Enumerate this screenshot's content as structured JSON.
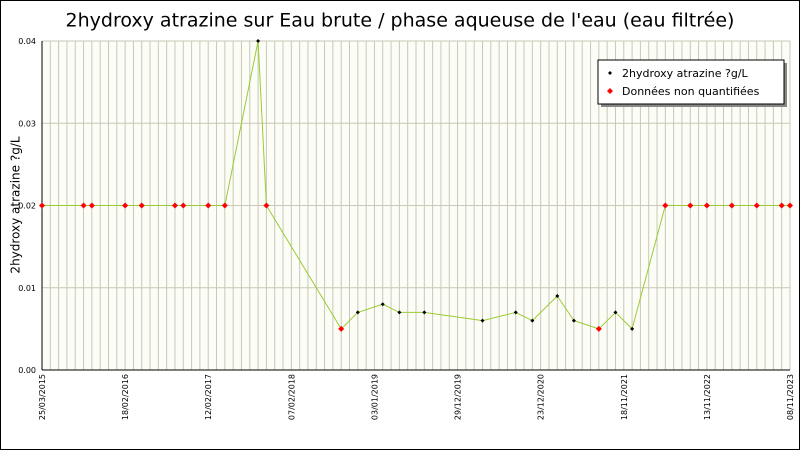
{
  "chart_data": {
    "type": "line",
    "title": "2hydroxy atrazine sur Eau brute / phase aqueuse de l'eau (eau filtrée)",
    "y_label": "2hydroxy atrazine ?g/L",
    "categories": [
      "25/03/2015",
      null,
      null,
      null,
      null,
      null,
      null,
      null,
      null,
      null,
      "18/02/2016",
      null,
      null,
      null,
      null,
      null,
      null,
      null,
      null,
      null,
      "12/02/2017",
      null,
      null,
      null,
      null,
      null,
      null,
      null,
      null,
      null,
      "07/02/2018",
      null,
      null,
      null,
      null,
      null,
      null,
      null,
      null,
      null,
      "03/01/2019",
      null,
      null,
      null,
      null,
      null,
      null,
      null,
      null,
      null,
      "29/12/2019",
      null,
      null,
      null,
      null,
      null,
      null,
      null,
      null,
      null,
      "23/12/2020",
      null,
      null,
      null,
      null,
      null,
      null,
      null,
      null,
      null,
      "18/11/2021",
      null,
      null,
      null,
      null,
      null,
      null,
      null,
      null,
      null,
      "13/11/2022",
      null,
      null,
      null,
      null,
      null,
      null,
      null,
      null,
      null,
      "08/11/2023"
    ],
    "series": [
      {
        "name": "2hydroxy atrazine ?g/L",
        "color": "#000000",
        "values": [
          null,
          null,
          null,
          null,
          null,
          null,
          null,
          null,
          null,
          null,
          null,
          null,
          null,
          null,
          null,
          null,
          null,
          null,
          null,
          null,
          null,
          null,
          null,
          null,
          null,
          null,
          0.04,
          null,
          null,
          null,
          null,
          null,
          null,
          null,
          null,
          null,
          null,
          null,
          0.007,
          null,
          null,
          0.008,
          null,
          0.007,
          null,
          null,
          0.007,
          null,
          null,
          null,
          null,
          null,
          null,
          0.006,
          null,
          null,
          null,
          0.007,
          null,
          0.006,
          null,
          null,
          0.009,
          null,
          0.006,
          null,
          null,
          null,
          null,
          0.007,
          null,
          0.005,
          null,
          null,
          null,
          null,
          null,
          null,
          null,
          null,
          null,
          null,
          null,
          null,
          null,
          null,
          null,
          null,
          null,
          null,
          null
        ]
      },
      {
        "name": "Données non quantifiées",
        "color": "#ff0000",
        "values": [
          0.02,
          null,
          null,
          null,
          null,
          0.02,
          0.02,
          null,
          null,
          null,
          0.02,
          null,
          0.02,
          null,
          null,
          null,
          0.02,
          0.02,
          null,
          null,
          0.02,
          null,
          0.02,
          null,
          null,
          null,
          null,
          0.02,
          null,
          null,
          null,
          null,
          null,
          null,
          null,
          null,
          0.005,
          null,
          null,
          null,
          null,
          null,
          null,
          null,
          null,
          null,
          null,
          null,
          null,
          null,
          null,
          null,
          null,
          null,
          null,
          null,
          null,
          null,
          null,
          null,
          null,
          null,
          null,
          null,
          null,
          null,
          null,
          0.005,
          null,
          null,
          null,
          null,
          null,
          null,
          null,
          0.02,
          null,
          null,
          0.02,
          null,
          0.02,
          null,
          null,
          0.02,
          null,
          null,
          0.02,
          null,
          null,
          0.02,
          0.02
        ]
      }
    ],
    "line_color": "#99cc33",
    "ylim": [
      0,
      0.04
    ],
    "yticks": [
      {
        "value": 0,
        "label": "0.00"
      },
      {
        "value": 0.01,
        "label": "0.01"
      },
      {
        "value": 0.02,
        "label": "0.02"
      },
      {
        "value": 0.03,
        "label": "0.03"
      },
      {
        "value": 0.04,
        "label": "0.04"
      }
    ],
    "grid": true,
    "legend": "top-right"
  }
}
